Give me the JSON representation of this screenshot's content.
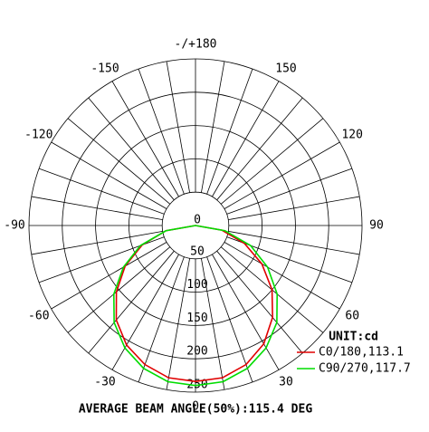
{
  "chart_data": {
    "type": "polar",
    "title": "AVERAGE BEAM ANGLE(50%):115.4 DEG",
    "unit_label": "UNIT:cd",
    "x": [
      -90,
      -80,
      -70,
      -60,
      -50,
      -40,
      -30,
      -20,
      -10,
      0,
      10,
      20,
      30,
      40,
      50,
      60,
      70,
      80,
      90
    ],
    "series": [
      {
        "name": "C0/180,113.1",
        "color": "#e00000",
        "values": [
          0,
          45,
          85,
          122,
          155,
          185,
          207,
          222,
          232,
          234,
          232,
          222,
          205,
          180,
          150,
          115,
          78,
          40,
          0
        ]
      },
      {
        "name": "C90/270,117.7",
        "color": "#00dd00",
        "values": [
          0,
          45,
          88,
          125,
          160,
          190,
          212,
          228,
          238,
          240,
          238,
          228,
          212,
          190,
          160,
          125,
          88,
          45,
          0
        ]
      }
    ],
    "rlim": [
      0,
      250
    ],
    "rticks": [
      0,
      50,
      100,
      150,
      200,
      250
    ],
    "thetaticks": [
      {
        "value": 180,
        "label": "-/+180"
      },
      150,
      120,
      90,
      60,
      30,
      0,
      -30,
      -60,
      -90,
      -120,
      -150
    ]
  }
}
